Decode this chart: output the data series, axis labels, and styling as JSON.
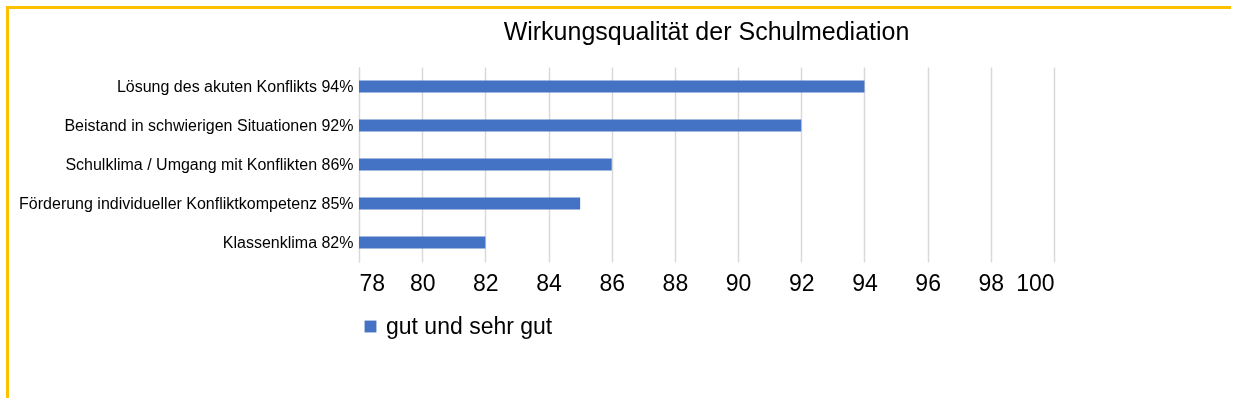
{
  "chart_data": {
    "type": "bar",
    "orientation": "horizontal",
    "title": "Wirkungsqualität der Schulmediation",
    "categories": [
      "Lösung des akuten Konflikts 94%",
      "Beistand in schwierigen Situationen 92%",
      "Schulklima / Umgang mit Konflikten 86%",
      "Förderung individueller Konfliktkompetenz 85%",
      "Klassenklima 82%"
    ],
    "series": [
      {
        "name": "gut und sehr gut",
        "color": "#4472c4",
        "values": [
          94,
          92,
          86,
          85,
          82
        ]
      }
    ],
    "xlim": [
      78,
      100
    ],
    "xticks": [
      78,
      80,
      82,
      84,
      86,
      88,
      90,
      92,
      94,
      96,
      98,
      100
    ],
    "grid": "x",
    "legend": "bottom"
  }
}
